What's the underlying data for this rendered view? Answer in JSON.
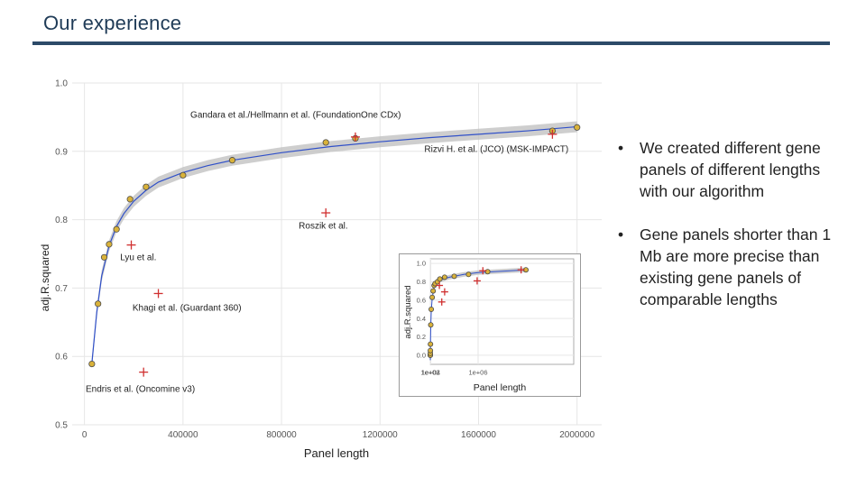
{
  "slide": {
    "title": "Our experience",
    "bullets": [
      "We created different gene panels of different lengths with our algorithm",
      "Gene panels shorter than 1 Mb are more precise than existing gene panels of comparable lengths"
    ],
    "bullet_symbol": "•"
  },
  "colors": {
    "title": "#1f3b57",
    "rule": "#2c4a68",
    "point_fill": "#d9b23a",
    "point_stroke": "#4a4a4a",
    "fit_line": "#3050c8",
    "ribbon": "#bdbdbd",
    "reference_marker": "#d03030",
    "grid": "#e6e6e6"
  },
  "chart_data": [
    {
      "type": "scatter",
      "xlabel": "Panel length",
      "ylabel": "adj.R.squared",
      "xlim": [
        -50000,
        2100000
      ],
      "ylim": [
        0.5,
        1.0
      ],
      "x_ticks": [
        0,
        400000,
        800000,
        1200000,
        1600000,
        2000000
      ],
      "x_tick_labels": [
        "0",
        "400000",
        "800000",
        "1200000",
        "1600000",
        "2000000"
      ],
      "y_ticks": [
        0.5,
        0.6,
        0.7,
        0.8,
        0.9,
        1.0
      ],
      "y_tick_labels": [
        "0.5",
        "0.6",
        "0.7",
        "0.8",
        "0.9",
        "1.0"
      ],
      "grid": true,
      "series": [
        {
          "kind": "points",
          "x": [
            30000,
            55000,
            80000,
            100000,
            130000,
            185000,
            250000,
            400000,
            600000,
            980000,
            1100000,
            1900000,
            2000000
          ],
          "y": [
            0.589,
            0.677,
            0.745,
            0.764,
            0.786,
            0.83,
            0.848,
            0.865,
            0.887,
            0.913,
            0.919,
            0.93,
            0.935
          ]
        },
        {
          "kind": "fit",
          "x": [
            30000,
            50000,
            70000,
            100000,
            130000,
            160000,
            200000,
            250000,
            300000,
            400000,
            500000,
            600000,
            800000,
            1000000,
            1200000,
            1400000,
            1600000,
            1800000,
            2000000
          ],
          "y": [
            0.59,
            0.665,
            0.718,
            0.762,
            0.79,
            0.809,
            0.827,
            0.843,
            0.855,
            0.869,
            0.879,
            0.887,
            0.898,
            0.907,
            0.914,
            0.92,
            0.925,
            0.93,
            0.936
          ]
        },
        {
          "kind": "reference",
          "x": [
            1100000,
            1900000,
            980000,
            190000,
            300000,
            240000
          ],
          "y": [
            0.921,
            0.925,
            0.81,
            0.763,
            0.692,
            0.577
          ]
        }
      ],
      "annotations": [
        {
          "text": "Gandara et al./Hellmann et al. (FoundationOne CDx)",
          "x": 430000,
          "y": 0.949
        },
        {
          "text": "Rizvi H. et al. (JCO) (MSK-IMPACT)",
          "x": 1380000,
          "y": 0.899
        },
        {
          "text": "Roszik et al.",
          "x": 870000,
          "y": 0.787
        },
        {
          "text": "Lyu et al.",
          "x": 145000,
          "y": 0.741
        },
        {
          "text": "Khagi et al. (Guardant 360)",
          "x": 195000,
          "y": 0.667
        },
        {
          "text": "Endris et al. (Oncomine v3)",
          "x": 5000,
          "y": 0.548
        }
      ]
    },
    {
      "type": "scatter",
      "xlabel": "Panel length",
      "ylabel": "adj.R.squared",
      "x_scale": "log",
      "xlim": [
        50,
        3000000
      ],
      "ylim": [
        -0.1,
        1.05
      ],
      "x_ticks": [
        100,
        10000,
        1000000
      ],
      "x_tick_labels": [
        "1e+02",
        "1e+04",
        "1e+06"
      ],
      "y_ticks": [
        0.0,
        0.2,
        0.4,
        0.6,
        0.8,
        1.0
      ],
      "y_tick_labels": [
        "0.0",
        "0.2",
        "0.4",
        "0.6",
        "0.8",
        "1.0"
      ],
      "grid": true,
      "series": [
        {
          "kind": "points",
          "x": [
            100,
            500,
            1000,
            2000,
            4000,
            10000,
            20000,
            40000,
            60000,
            80000,
            100000,
            150000,
            200000,
            300000,
            500000,
            800000,
            1200000,
            2000000
          ],
          "y": [
            0.0,
            0.0,
            0.02,
            0.05,
            0.12,
            0.33,
            0.5,
            0.63,
            0.7,
            0.76,
            0.78,
            0.8,
            0.83,
            0.85,
            0.86,
            0.88,
            0.91,
            0.93
          ]
        },
        {
          "kind": "fit",
          "x": [
            100,
            200,
            400,
            700,
            1000,
            2000,
            4000,
            7000,
            10000,
            20000,
            40000,
            70000,
            100000,
            200000,
            400000,
            700000,
            1000000,
            2000000
          ],
          "y": [
            0.0,
            -0.05,
            -0.05,
            -0.01,
            0.02,
            0.06,
            0.14,
            0.24,
            0.32,
            0.48,
            0.62,
            0.72,
            0.77,
            0.82,
            0.85,
            0.88,
            0.9,
            0.93
          ]
        },
        {
          "kind": "reference",
          "x": [
            1100000,
            1900000,
            980000,
            190000,
            300000,
            240000
          ],
          "y": [
            0.92,
            0.93,
            0.81,
            0.76,
            0.69,
            0.58
          ]
        }
      ]
    }
  ]
}
